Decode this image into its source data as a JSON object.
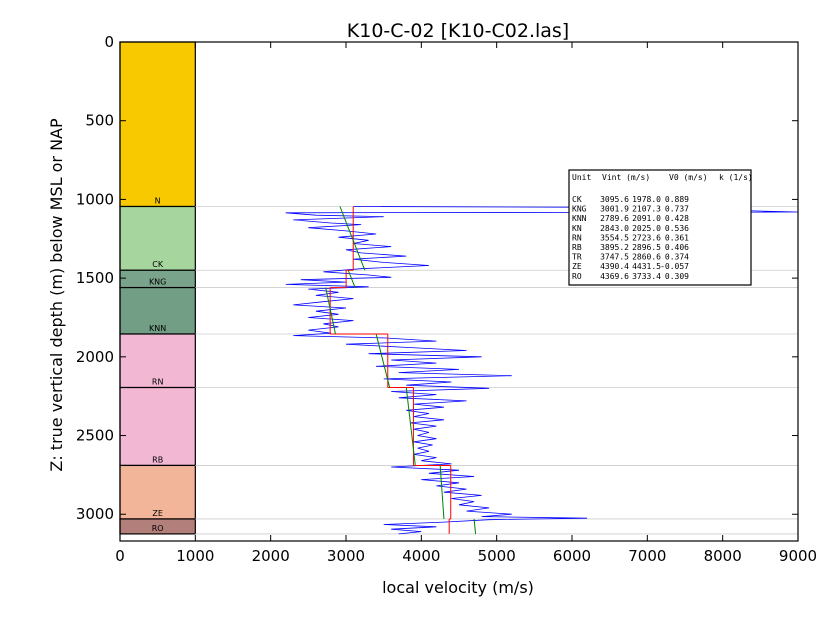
{
  "chart_data": {
    "type": "line",
    "title": "K10-C-02 [K10-C02.las]",
    "xlabel": "local velocity (m/s)",
    "ylabel": "Z: true vertical depth (m) below MSL or NAP",
    "xlim": [
      0,
      9000
    ],
    "ylim": [
      3170,
      0
    ],
    "xticks": [
      0,
      1000,
      2000,
      3000,
      4000,
      5000,
      6000,
      7000,
      8000,
      9000
    ],
    "yticks": [
      0,
      500,
      1000,
      1500,
      2000,
      2500,
      3000
    ],
    "grid": false,
    "units": [
      {
        "name": "N",
        "top": 0,
        "base": 1045,
        "color": "#f9c900"
      },
      {
        "name": "CK",
        "top": 1045,
        "base": 1450,
        "color": "#a6d69e"
      },
      {
        "name": "KNG",
        "top": 1450,
        "base": 1560,
        "color": "#7aa38c"
      },
      {
        "name": "KNN",
        "top": 1560,
        "base": 1855,
        "color": "#739e86"
      },
      {
        "name": "RN",
        "top": 1855,
        "base": 2195,
        "color": "#f1b7d3"
      },
      {
        "name": "RB",
        "top": 2195,
        "base": 2690,
        "color": "#f1b7d3"
      },
      {
        "name": "ZE",
        "top": 2690,
        "base": 3030,
        "color": "#f3b59a"
      },
      {
        "name": "RO",
        "top": 3030,
        "base": 3125,
        "color": "#b27f7a"
      }
    ],
    "legend": {
      "placement": "right",
      "header": {
        "unit": "Unit",
        "vint": "Vint (m/s)",
        "v0": "V0 (m/s)",
        "k": "k (1/s)"
      },
      "rows": [
        {
          "unit": "CK",
          "vint": "3095.6",
          "v0": "1978.0",
          "k": "0.889"
        },
        {
          "unit": "KNG",
          "vint": "3001.9",
          "v0": "2107.3",
          "k": "0.737"
        },
        {
          "unit": "KNN",
          "vint": "2789.6",
          "v0": "2091.0",
          "k": "0.428"
        },
        {
          "unit": "KN",
          "vint": "2843.0",
          "v0": "2025.0",
          "k": "0.536"
        },
        {
          "unit": "RN",
          "vint": "3554.5",
          "v0": "2723.6",
          "k": "0.361"
        },
        {
          "unit": "RB",
          "vint": "3895.2",
          "v0": "2896.5",
          "k": "0.406"
        },
        {
          "unit": "TR",
          "vint": "3747.5",
          "v0": "2860.6",
          "k": "0.374"
        },
        {
          "unit": "ZE",
          "vint": "4390.4",
          "v0": "4431.5",
          "k": "-0.057"
        },
        {
          "unit": "RO",
          "vint": "4369.6",
          "v0": "3733.4",
          "k": "0.309"
        }
      ]
    },
    "interval_velocity": [
      {
        "unit": "CK",
        "top": 1045,
        "base": 1450,
        "vint": 3095.6
      },
      {
        "unit": "KNG",
        "top": 1450,
        "base": 1560,
        "vint": 3001.9
      },
      {
        "unit": "KNN",
        "top": 1560,
        "base": 1855,
        "vint": 2789.6
      },
      {
        "unit": "RN",
        "top": 1855,
        "base": 2195,
        "vint": 3554.5
      },
      {
        "unit": "RB",
        "top": 2195,
        "base": 2690,
        "vint": 3895.2
      },
      {
        "unit": "ZE",
        "top": 2690,
        "base": 3030,
        "vint": 4390.4
      },
      {
        "unit": "RO",
        "top": 3030,
        "base": 3125,
        "vint": 4369.6
      }
    ],
    "trend_fit": [
      {
        "unit": "CK",
        "points": [
          [
            2920,
            1045
          ],
          [
            3250,
            1450
          ]
        ]
      },
      {
        "unit": "KNG",
        "points": [
          [
            3030,
            1450
          ],
          [
            3120,
            1560
          ]
        ]
      },
      {
        "unit": "KNN",
        "points": [
          [
            2730,
            1560
          ],
          [
            2860,
            1855
          ]
        ]
      },
      {
        "unit": "RN",
        "points": [
          [
            3400,
            1855
          ],
          [
            3580,
            2195
          ]
        ]
      },
      {
        "unit": "RB",
        "points": [
          [
            3800,
            2195
          ],
          [
            3920,
            2690
          ]
        ]
      },
      {
        "unit": "ZE",
        "points": [
          [
            4250,
            2690
          ],
          [
            4300,
            3030
          ]
        ]
      },
      {
        "unit": "RO",
        "points": [
          [
            4700,
            3030
          ],
          [
            4720,
            3125
          ]
        ]
      }
    ],
    "series": [
      {
        "type": "sonic-log",
        "color": "#0000ff",
        "points": [
          [
            3100,
            1045
          ],
          [
            6500,
            1050
          ],
          [
            9000,
            1080
          ],
          [
            2200,
            1085
          ],
          [
            2600,
            1100
          ],
          [
            3500,
            1110
          ],
          [
            2300,
            1130
          ],
          [
            2800,
            1150
          ],
          [
            3200,
            1160
          ],
          [
            2500,
            1180
          ],
          [
            3000,
            1200
          ],
          [
            3400,
            1220
          ],
          [
            2900,
            1240
          ],
          [
            3300,
            1260
          ],
          [
            3100,
            1280
          ],
          [
            3600,
            1300
          ],
          [
            3000,
            1320
          ],
          [
            3200,
            1340
          ],
          [
            3800,
            1360
          ],
          [
            3100,
            1380
          ],
          [
            3500,
            1400
          ],
          [
            4100,
            1420
          ],
          [
            3200,
            1440
          ],
          [
            2700,
            1460
          ],
          [
            3300,
            1480
          ],
          [
            3600,
            1495
          ],
          [
            2400,
            1510
          ],
          [
            3000,
            1525
          ],
          [
            2200,
            1540
          ],
          [
            3300,
            1555
          ],
          [
            2500,
            1570
          ],
          [
            2900,
            1590
          ],
          [
            2600,
            1610
          ],
          [
            3100,
            1630
          ],
          [
            2700,
            1650
          ],
          [
            2300,
            1670
          ],
          [
            3000,
            1690
          ],
          [
            2600,
            1710
          ],
          [
            2900,
            1730
          ],
          [
            2500,
            1750
          ],
          [
            3100,
            1770
          ],
          [
            2700,
            1790
          ],
          [
            2900,
            1810
          ],
          [
            2500,
            1830
          ],
          [
            2800,
            1850
          ],
          [
            2300,
            1865
          ],
          [
            3500,
            1880
          ],
          [
            4200,
            1900
          ],
          [
            3000,
            1920
          ],
          [
            3800,
            1940
          ],
          [
            4600,
            1960
          ],
          [
            3300,
            1980
          ],
          [
            4800,
            2000
          ],
          [
            3600,
            2020
          ],
          [
            4200,
            2040
          ],
          [
            3400,
            2060
          ],
          [
            4500,
            2080
          ],
          [
            3700,
            2100
          ],
          [
            5200,
            2120
          ],
          [
            3500,
            2140
          ],
          [
            4400,
            2160
          ],
          [
            3800,
            2180
          ],
          [
            4900,
            2200
          ],
          [
            3600,
            2220
          ],
          [
            4200,
            2240
          ],
          [
            3700,
            2260
          ],
          [
            4600,
            2280
          ],
          [
            3900,
            2300
          ],
          [
            4300,
            2320
          ],
          [
            3800,
            2340
          ],
          [
            4100,
            2360
          ],
          [
            3900,
            2380
          ],
          [
            4300,
            2400
          ],
          [
            3850,
            2420
          ],
          [
            4200,
            2440
          ],
          [
            3900,
            2460
          ],
          [
            4100,
            2480
          ],
          [
            3950,
            2500
          ],
          [
            4200,
            2520
          ],
          [
            3900,
            2540
          ],
          [
            4150,
            2560
          ],
          [
            3950,
            2580
          ],
          [
            4100,
            2600
          ],
          [
            3900,
            2620
          ],
          [
            4200,
            2640
          ],
          [
            4000,
            2660
          ],
          [
            4400,
            2680
          ],
          [
            3600,
            2700
          ],
          [
            4500,
            2720
          ],
          [
            4100,
            2740
          ],
          [
            4700,
            2760
          ],
          [
            4000,
            2780
          ],
          [
            4500,
            2800
          ],
          [
            4200,
            2820
          ],
          [
            4600,
            2840
          ],
          [
            4300,
            2860
          ],
          [
            4800,
            2880
          ],
          [
            4400,
            2900
          ],
          [
            4700,
            2920
          ],
          [
            4500,
            2940
          ],
          [
            4900,
            2960
          ],
          [
            4600,
            2980
          ],
          [
            5200,
            3000
          ],
          [
            4800,
            3015
          ],
          [
            6200,
            3025
          ],
          [
            4900,
            3035
          ],
          [
            4300,
            3050
          ],
          [
            3500,
            3065
          ],
          [
            4200,
            3080
          ],
          [
            3600,
            3095
          ],
          [
            4000,
            3110
          ],
          [
            3700,
            3125
          ]
        ]
      }
    ]
  }
}
